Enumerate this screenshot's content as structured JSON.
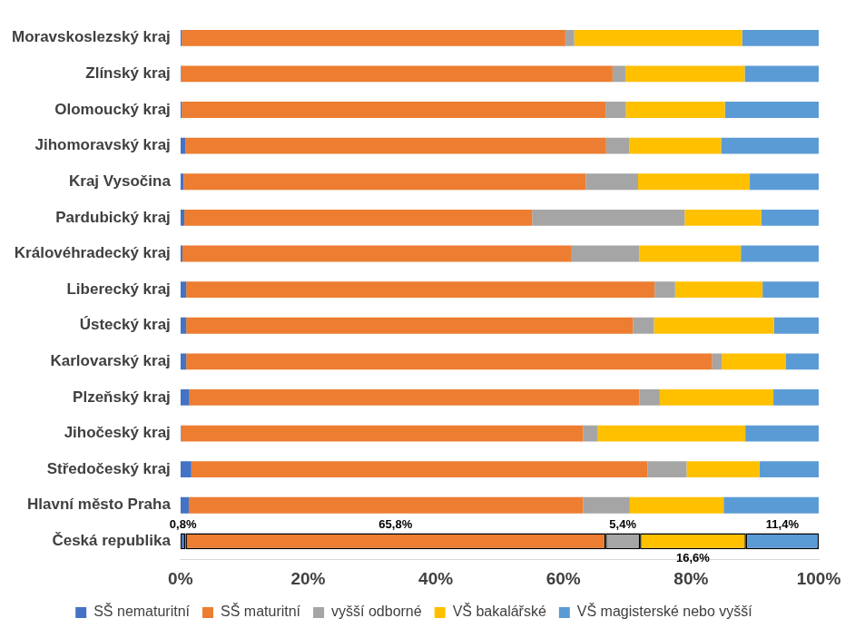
{
  "chart_data": {
    "type": "bar",
    "orientation": "horizontal",
    "stacked": true,
    "grid": false,
    "legend": "bottom",
    "data_labels": true,
    "categories": [
      "Moravskoslezský kraj",
      "Zlínský kraj",
      "Olomoucký kraj",
      "Jihomoravský kraj",
      "Kraj Vysočina",
      "Pardubický kraj",
      "Královéhradecký kraj",
      "Liberecký kraj",
      "Ústecký kraj",
      "Karlovarský kraj",
      "Plzeňský kraj",
      "Jihočeský kraj",
      "Středočeský kraj",
      "Hlavní město Praha",
      "Česká republika"
    ],
    "xlim": [
      0,
      100
    ],
    "xticks": [
      {
        "value": 0,
        "label": "0%"
      },
      {
        "value": 20,
        "label": "20%"
      },
      {
        "value": 40,
        "label": "40%"
      },
      {
        "value": 60,
        "label": "60%"
      },
      {
        "value": 80,
        "label": "80%"
      },
      {
        "value": 100,
        "label": "100%"
      }
    ],
    "series": [
      {
        "name": "SŠ nematuritní",
        "color": "#4472c4",
        "values": [
          0.2,
          0.1,
          0.2,
          0.8,
          0.5,
          0.6,
          0.3,
          0.9,
          0.9,
          0.9,
          1.4,
          0.1,
          1.7,
          1.3,
          0.8
        ],
        "value_labels": [
          null,
          null,
          null,
          null,
          null,
          null,
          null,
          null,
          null,
          null,
          null,
          null,
          null,
          null,
          "0,8%"
        ]
      },
      {
        "name": "SŠ maturitní",
        "color": "#ed7d31",
        "values": [
          60.1,
          67.6,
          66.4,
          65.9,
          63.0,
          54.5,
          61.0,
          73.4,
          70.0,
          82.4,
          70.5,
          63.0,
          71.5,
          61.8,
          65.8
        ],
        "value_labels": [
          null,
          null,
          null,
          null,
          null,
          null,
          null,
          null,
          null,
          null,
          null,
          null,
          null,
          null,
          "65,8%"
        ]
      },
      {
        "name": "vyšší odborné",
        "color": "#a5a5a5",
        "values": [
          1.4,
          2.0,
          3.2,
          3.6,
          8.2,
          23.9,
          10.6,
          3.2,
          3.3,
          1.5,
          3.2,
          2.3,
          6.1,
          7.3,
          5.4
        ],
        "value_labels": [
          null,
          null,
          null,
          null,
          null,
          null,
          null,
          null,
          null,
          null,
          null,
          null,
          null,
          null,
          "5,4%"
        ]
      },
      {
        "name": "VŠ bakalářské",
        "color": "#ffc000",
        "values": [
          26.3,
          18.7,
          15.5,
          14.4,
          17.5,
          12.0,
          15.9,
          13.7,
          18.8,
          10.0,
          17.8,
          23.1,
          11.4,
          14.7,
          16.6
        ],
        "value_labels": [
          null,
          null,
          null,
          null,
          null,
          null,
          null,
          null,
          null,
          null,
          null,
          null,
          null,
          null,
          "16,6%"
        ]
      },
      {
        "name": "VŠ magisterské nebo vyšší",
        "color": "#5b9bd5",
        "values": [
          12.0,
          11.6,
          14.7,
          15.3,
          10.8,
          9.0,
          12.2,
          8.8,
          7.0,
          5.2,
          7.1,
          11.5,
          9.3,
          14.9,
          11.4
        ],
        "value_labels": [
          null,
          null,
          null,
          null,
          null,
          null,
          null,
          null,
          null,
          null,
          null,
          null,
          null,
          null,
          "11,4%"
        ]
      }
    ]
  }
}
